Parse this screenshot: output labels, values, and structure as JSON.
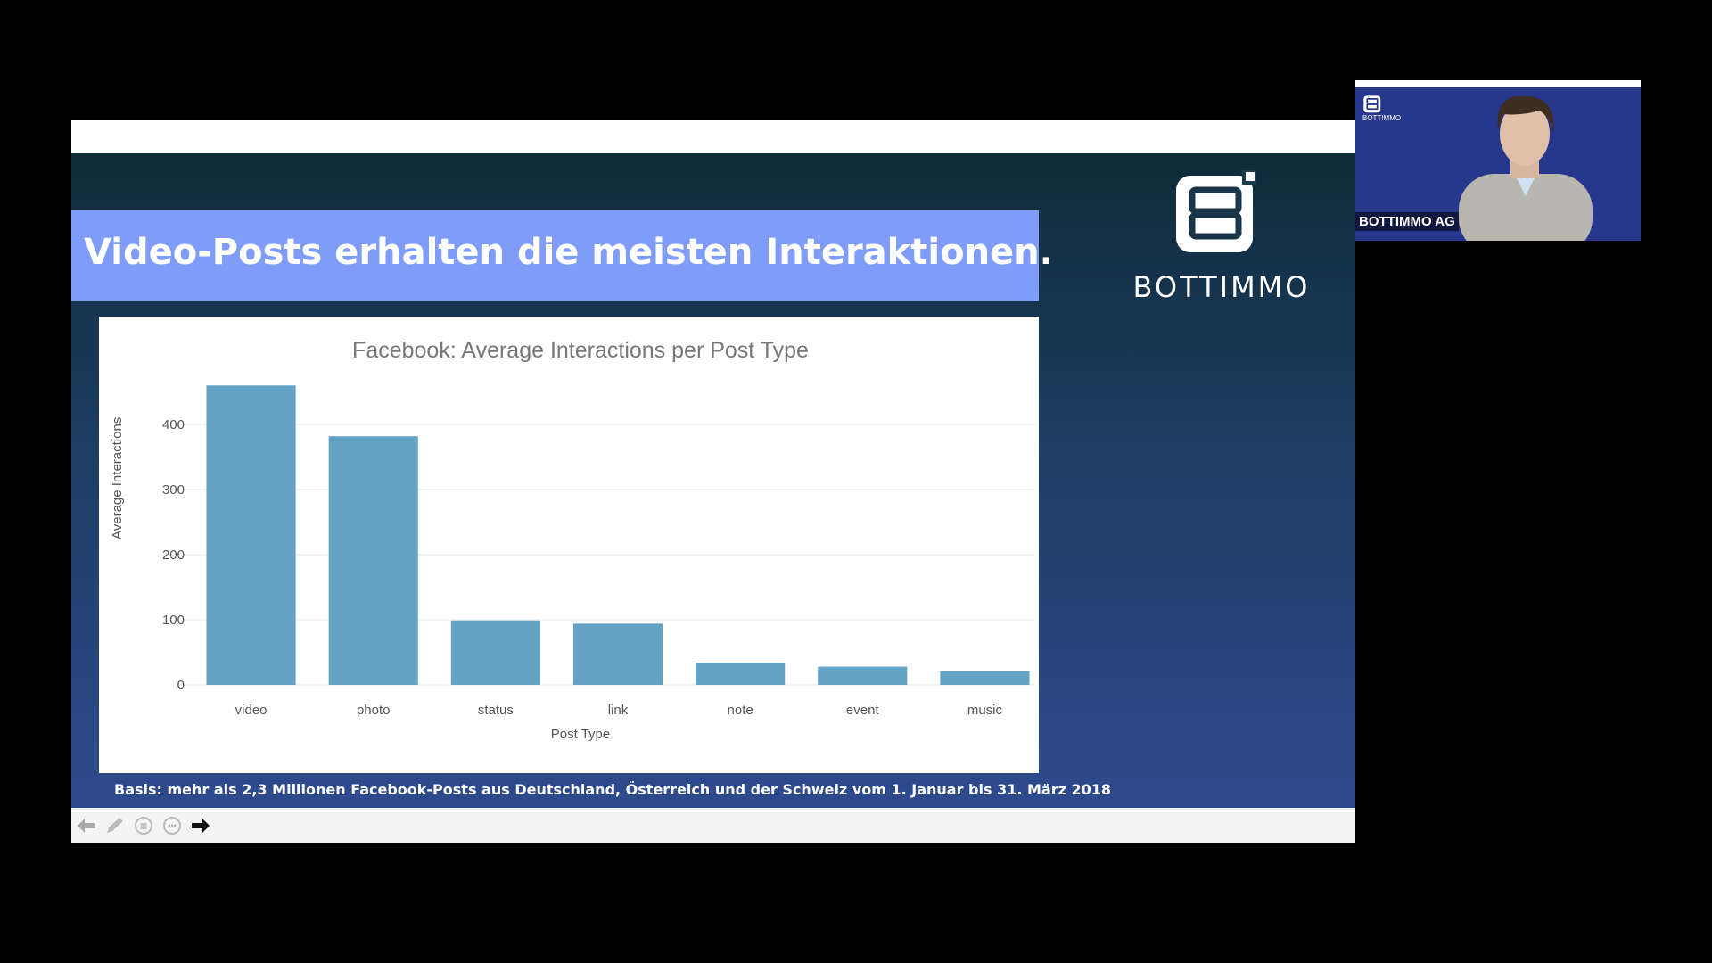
{
  "slide": {
    "title": "Video-Posts erhalten die meisten Interaktionen.",
    "brand": "BOTTIMMO",
    "footnote": "Basis: mehr als 2,3 Millionen Facebook-Posts aus Deutschland, Österreich und der Schweiz vom 1. Januar bis 31. März 2018"
  },
  "chart_data": {
    "type": "bar",
    "title": "Facebook: Average Interactions per Post Type",
    "xlabel": "Post Type",
    "ylabel": "Average Interactions",
    "categories": [
      "video",
      "photo",
      "status",
      "link",
      "note",
      "event",
      "music"
    ],
    "values": [
      460,
      382,
      99,
      94,
      34,
      28,
      21
    ],
    "yticks": [
      0,
      100,
      200,
      300,
      400
    ],
    "ylim": [
      0,
      470
    ],
    "grid": true,
    "bar_color": "#65a3c5"
  },
  "toolbar": {
    "icons": [
      "back-arrow-icon",
      "pen-icon",
      "grid-icon",
      "more-icon",
      "forward-arrow-icon"
    ]
  },
  "webcam": {
    "name": "BOTTIMMO AG",
    "logo_text": "BOTTIMMO"
  }
}
